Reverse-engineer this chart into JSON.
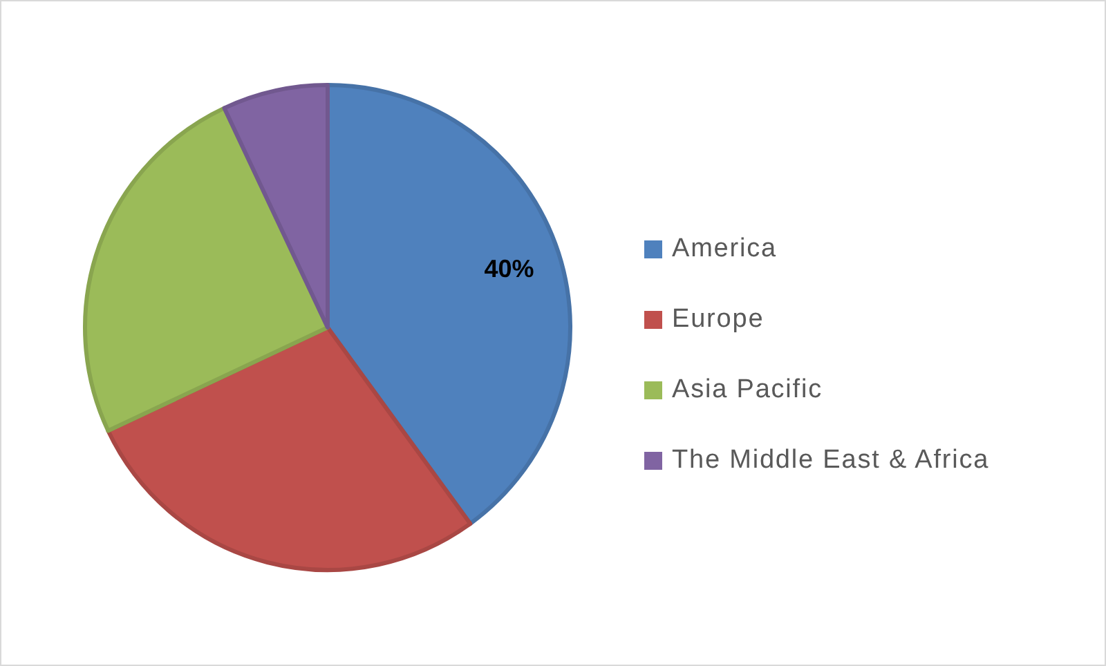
{
  "chart_data": {
    "type": "pie",
    "categories": [
      "America",
      "Europe",
      "Asia Pacific",
      "The Middle East & Africa"
    ],
    "values": [
      40,
      28,
      25,
      7
    ],
    "colors": [
      "#4f81bd",
      "#c0504d",
      "#9bbb59",
      "#8064a2"
    ],
    "value_labels": [
      "40%",
      null,
      null,
      null
    ],
    "legend": "right"
  }
}
